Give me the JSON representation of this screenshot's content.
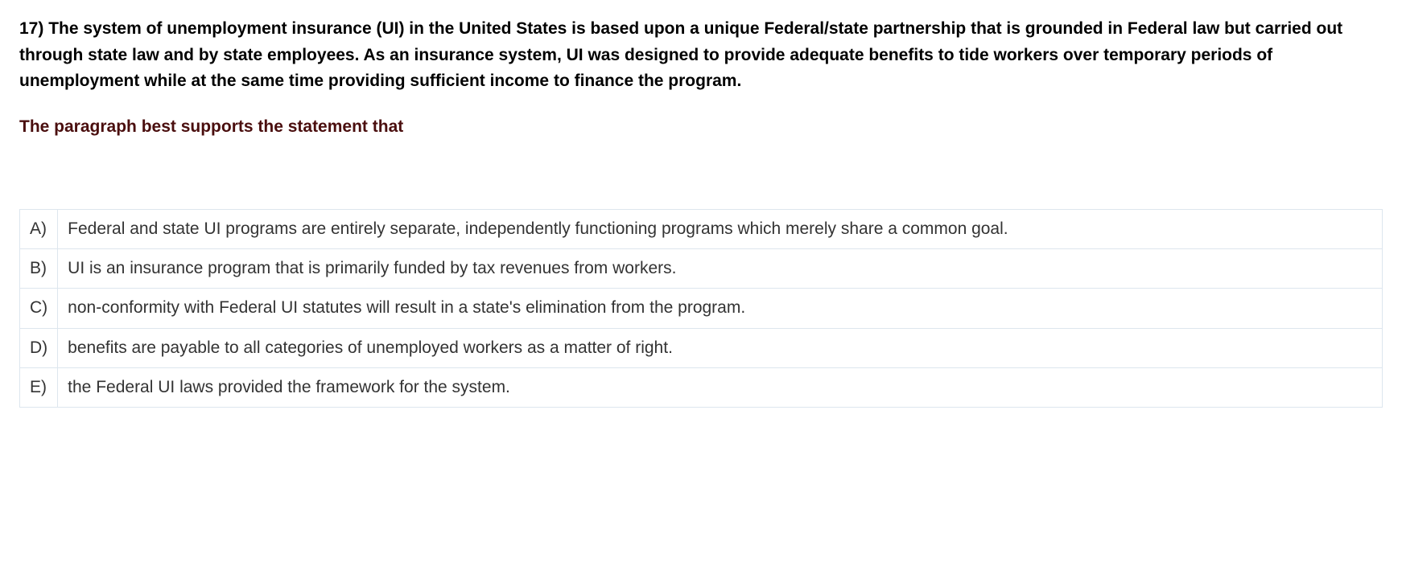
{
  "question": {
    "number": "17)",
    "text": "The system of unemployment insurance (UI) in the United States is based upon a unique Federal/state partnership that is grounded in Federal law but carried out through state law and by state employees. As an insurance system, UI was designed to provide adequate benefits to tide workers over temporary periods of unemployment while at the same time providing sufficient income to finance the program.",
    "prompt": "The paragraph best supports the statement that",
    "prompt_color": "#4a0e0e"
  },
  "answers": [
    {
      "letter": "A)",
      "text": "Federal and state UI programs are entirely separate, independently functioning programs which merely share a common goal."
    },
    {
      "letter": "B)",
      "text": "UI is an insurance program that is primarily funded by tax revenues from workers."
    },
    {
      "letter": "C)",
      "text": "non-conformity with Federal UI statutes will result in a state's elimination from the program."
    },
    {
      "letter": "D)",
      "text": "benefits are payable to all categories of unemployed workers as a matter of right."
    },
    {
      "letter": "E)",
      "text": "the Federal UI laws provided the framework for the system."
    }
  ],
  "styling": {
    "body_bg": "#ffffff",
    "text_color": "#000000",
    "answer_text_color": "#333333",
    "border_color": "#dde6ee",
    "question_fontsize": 21,
    "answer_fontsize": 21,
    "font_family": "Verdana, Geneva, sans-serif"
  }
}
